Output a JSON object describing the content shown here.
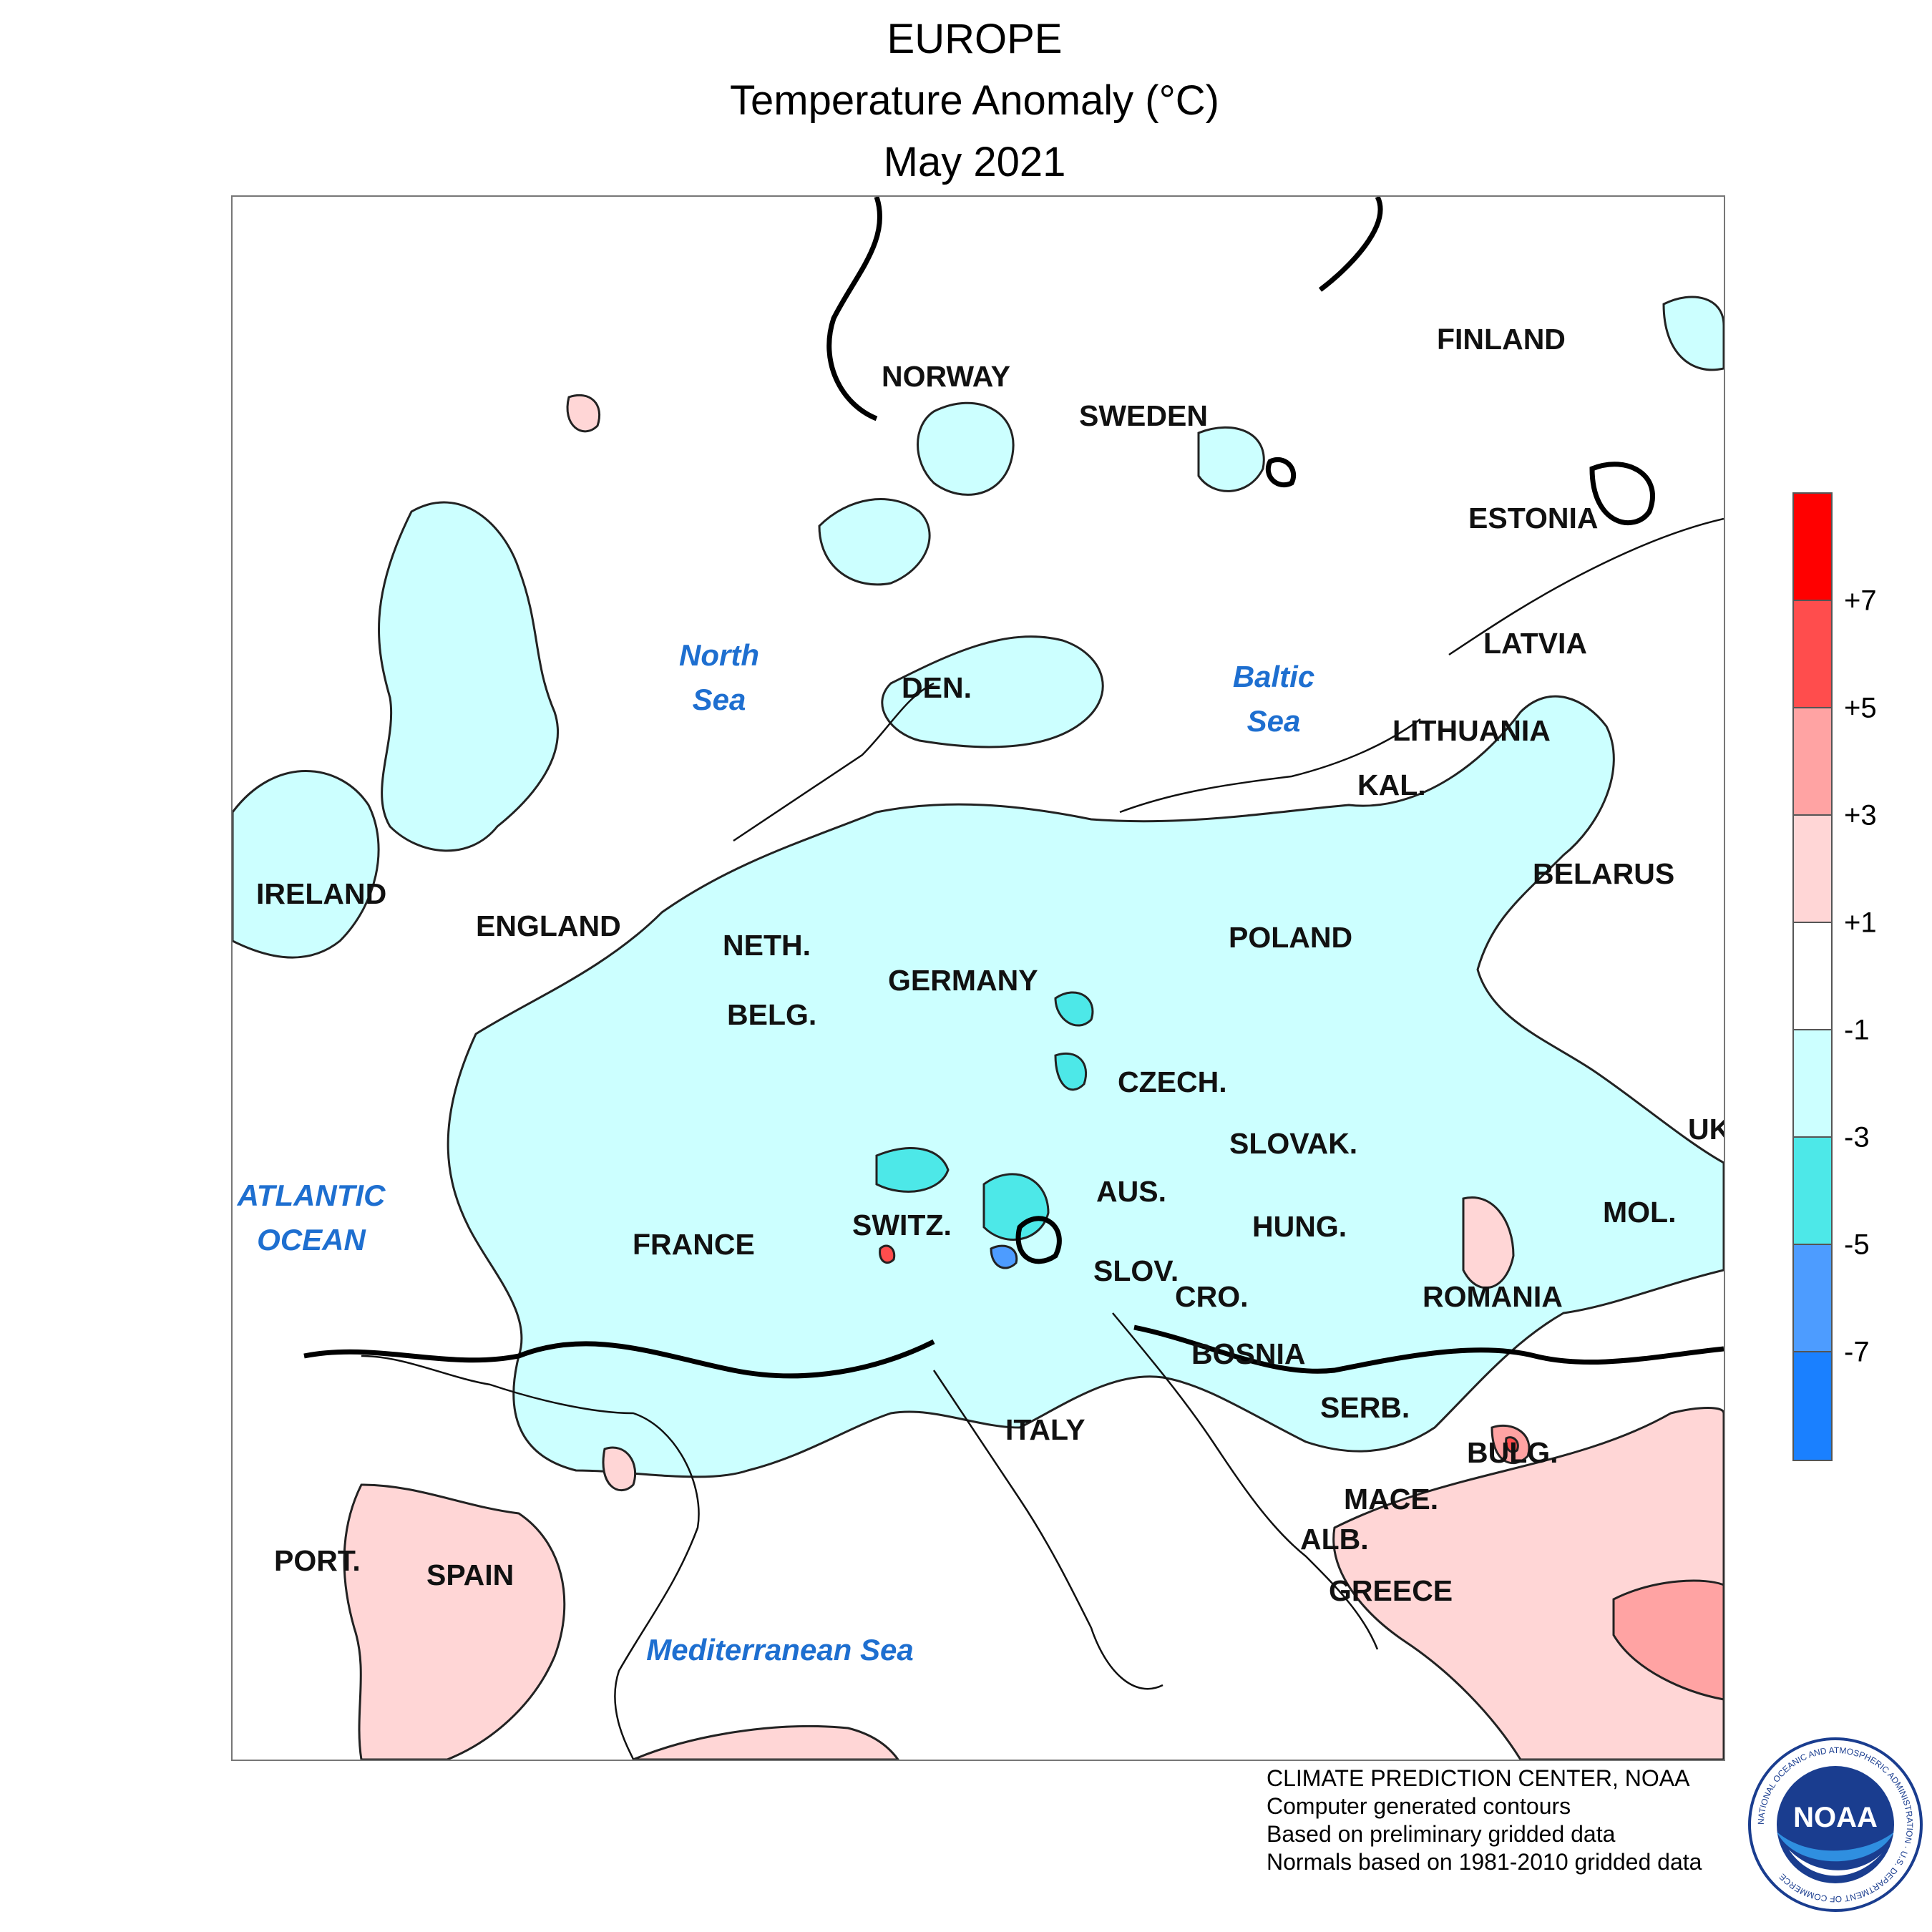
{
  "title": {
    "line1": "EUROPE",
    "line2": "Temperature Anomaly (°C)",
    "line3": "May 2021"
  },
  "labels": {
    "norway": "NORWAY",
    "sweden": "SWEDEN",
    "finland": "FINLAND",
    "estonia": "ESTONIA",
    "latvia": "LATVIA",
    "lithuania": "LITHUANIA",
    "kal": "KAL.",
    "belarus": "BELARUS",
    "ireland": "IRELAND",
    "england": "ENGLAND",
    "den": "DEN.",
    "neth": "NETH.",
    "belg": "BELG.",
    "germany": "GERMANY",
    "poland": "POLAND",
    "czech": "CZECH.",
    "slovak": "SLOVAK.",
    "aus": "AUS.",
    "hung": "HUNG.",
    "switz": "SWITZ.",
    "france": "FRANCE",
    "slov": "SLOV.",
    "cro": "CRO.",
    "bosnia": "BOSNIA",
    "serb": "SERB.",
    "romania": "ROMANIA",
    "mol": "MOL.",
    "uk": "UK",
    "italy": "ITALY",
    "bulg": "BULG.",
    "mace": "MACE.",
    "alb": "ALB.",
    "greece": "GREECE",
    "port": "PORT.",
    "spain": "SPAIN"
  },
  "seas": {
    "north_sea_1": "North",
    "north_sea_2": "Sea",
    "baltic_sea_1": "Baltic",
    "baltic_sea_2": "Sea",
    "atlantic_1": "ATLANTIC",
    "atlantic_2": "OCEAN",
    "mediterranean": "Mediterranean Sea"
  },
  "legend": {
    "colors": [
      "#ff0000",
      "#ff4d4d",
      "#ffa3a3",
      "#ffd6d6",
      "#ffffff",
      "#ccffff",
      "#4de8e8",
      "#4d9cff",
      "#1a80ff"
    ],
    "tick_labels": [
      "+7",
      "+5",
      "+3",
      "+1",
      "-1",
      "-3",
      "-5",
      "-7"
    ]
  },
  "credits": {
    "line1": "CLIMATE PREDICTION CENTER, NOAA",
    "line2": "Computer generated contours",
    "line3": "Based on preliminary gridded data",
    "line4": "Normals based on 1981-2010 gridded data"
  },
  "logo": {
    "text": "NOAA",
    "ring_text": "NATIONAL OCEANIC AND ATMOSPHERIC ADMINISTRATION · U.S. DEPARTMENT OF COMMERCE"
  }
}
